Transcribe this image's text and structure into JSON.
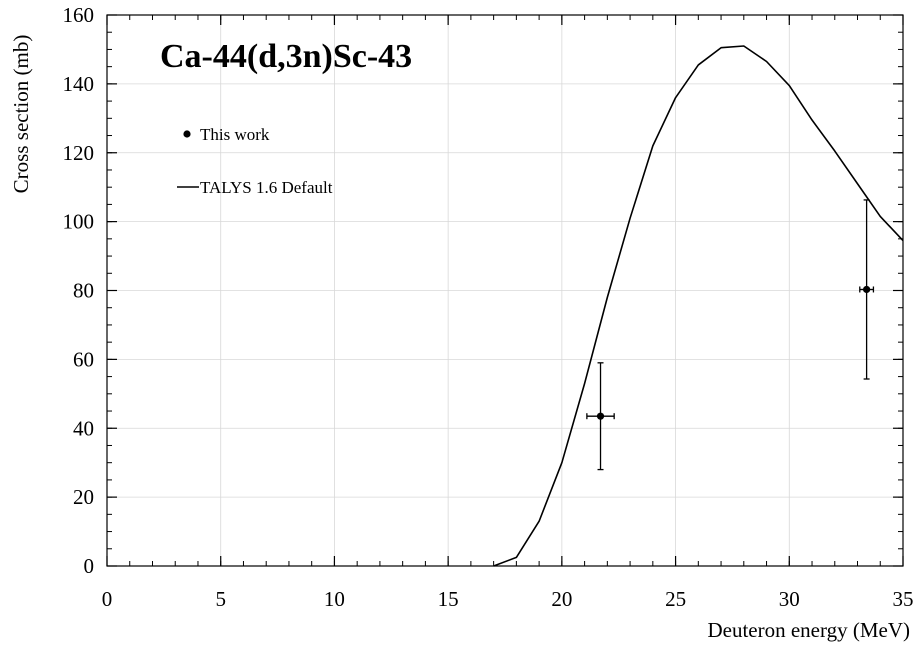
{
  "chart_data": {
    "type": "line",
    "title": "Ca-44(d,3n)Sc-43",
    "xlabel": "Deuteron energy (MeV)",
    "ylabel": "Cross section (mb)",
    "xlim": [
      0,
      35
    ],
    "ylim": [
      0,
      160
    ],
    "xticks": [
      0,
      5,
      10,
      15,
      20,
      25,
      30,
      35
    ],
    "yticks": [
      0,
      20,
      40,
      60,
      80,
      100,
      120,
      140,
      160
    ],
    "x_minor_step": 1,
    "y_minor_step": 5,
    "grid": true,
    "legend_position": "upper-left",
    "series": [
      {
        "name": "This work",
        "kind": "scatter-errorbar",
        "color": "#000000",
        "points": [
          {
            "x": 21.7,
            "y": 43.5,
            "xerr": 0.6,
            "yerr": 15.5
          },
          {
            "x": 33.4,
            "y": 80.3,
            "xerr": 0.3,
            "yerr": 26.0
          }
        ]
      },
      {
        "name": "TALYS 1.6 Default",
        "kind": "line",
        "color": "#000000",
        "x": [
          17,
          18,
          19,
          20,
          21,
          22,
          23,
          24,
          25,
          26,
          27,
          28,
          29,
          30,
          31,
          32,
          33,
          34,
          35
        ],
        "y": [
          0,
          2.5,
          13,
          30,
          53,
          78,
          101,
          122,
          136,
          145.5,
          150.5,
          151,
          146.5,
          139.5,
          129.5,
          120.5,
          111,
          101.5,
          94.5
        ]
      }
    ]
  }
}
